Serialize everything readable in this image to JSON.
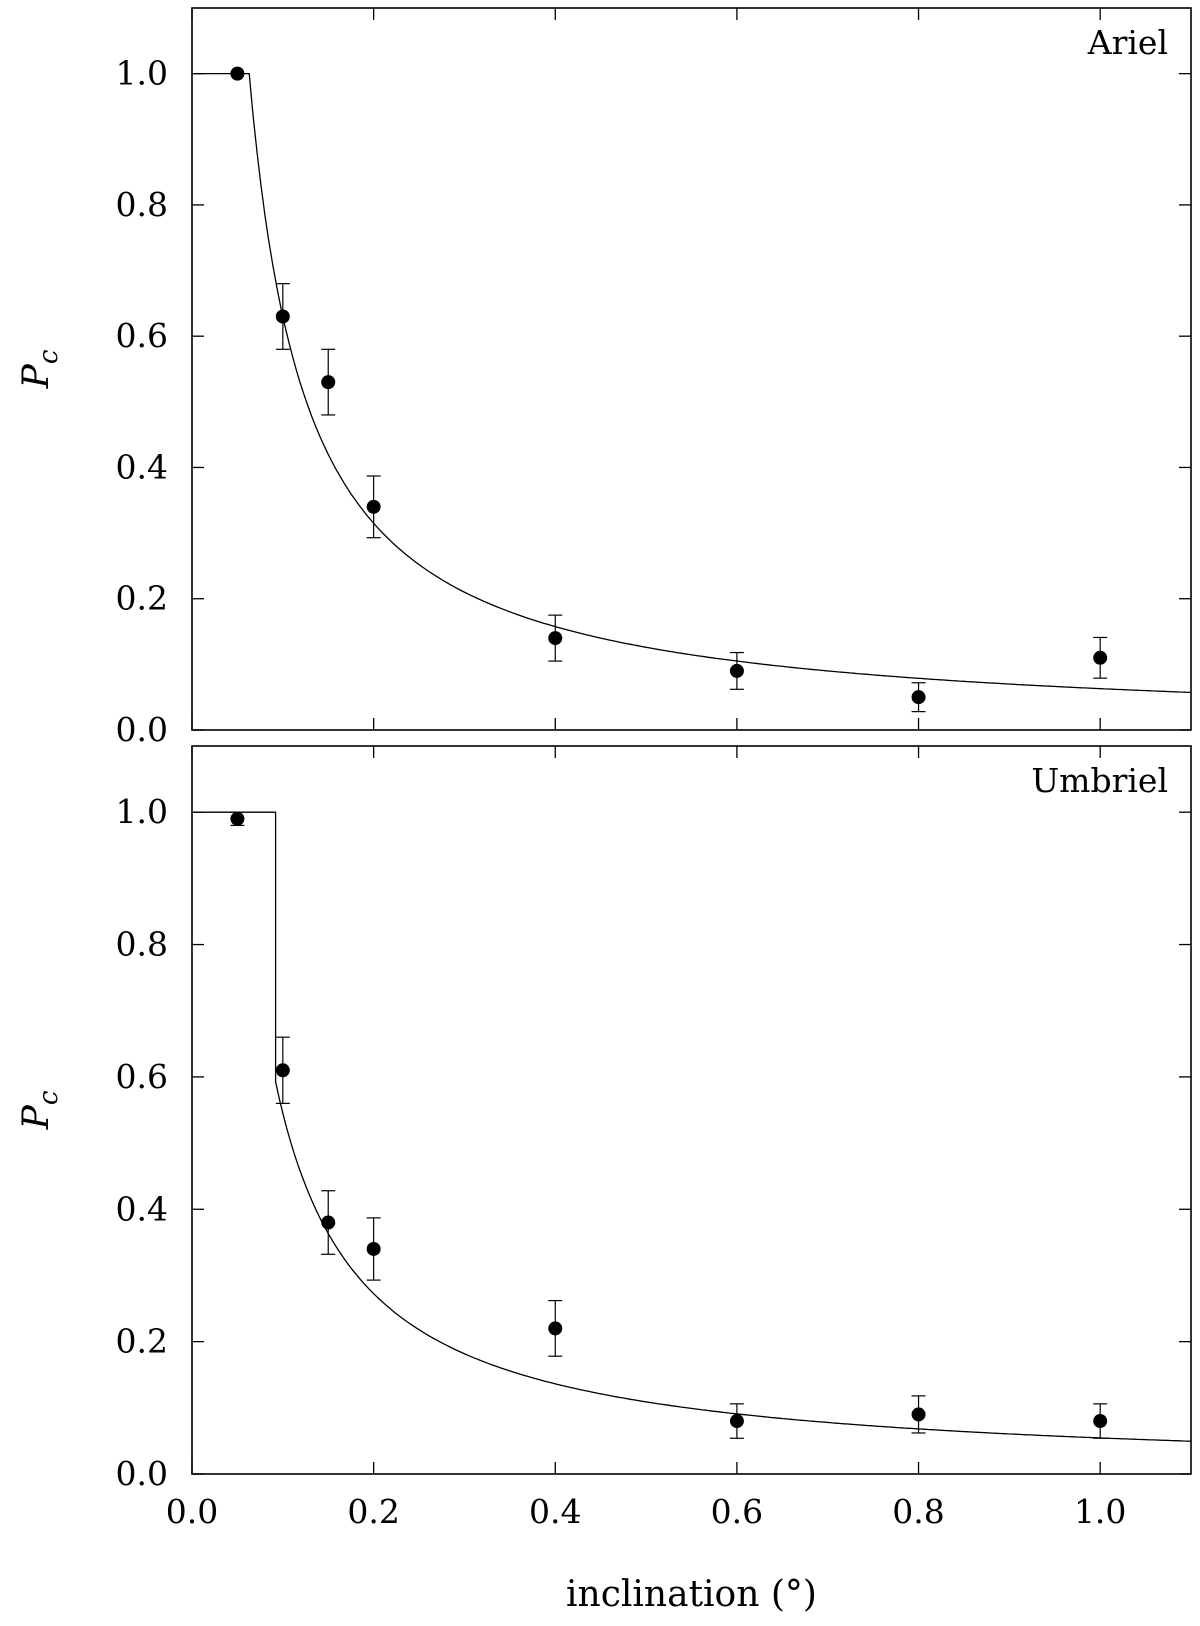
{
  "chart_data": [
    {
      "type": "scatter",
      "panel_label": "Ariel",
      "ylabel_symbol": "P",
      "ylabel_subscript": "c",
      "xlim": [
        0.0,
        1.1
      ],
      "ylim": [
        0.0,
        1.1
      ],
      "x_ticks": [
        "0.0",
        "0.2",
        "0.4",
        "0.6",
        "0.8",
        "1.0"
      ],
      "y_ticks": [
        "0.0",
        "0.2",
        "0.4",
        "0.6",
        "0.8",
        "1.0"
      ],
      "points": [
        {
          "x": 0.05,
          "y": 1.0,
          "err": 0.0
        },
        {
          "x": 0.1,
          "y": 0.63,
          "err": 0.05
        },
        {
          "x": 0.15,
          "y": 0.53,
          "err": 0.05
        },
        {
          "x": 0.2,
          "y": 0.34,
          "err": 0.047
        },
        {
          "x": 0.4,
          "y": 0.14,
          "err": 0.035
        },
        {
          "x": 0.6,
          "y": 0.09,
          "err": 0.028
        },
        {
          "x": 0.8,
          "y": 0.05,
          "err": 0.022
        },
        {
          "x": 1.0,
          "y": 0.11,
          "err": 0.031
        }
      ],
      "fit": {
        "x_cut": 0.063,
        "k": 0.063
      }
    },
    {
      "type": "scatter",
      "panel_label": "Umbriel",
      "ylabel_symbol": "P",
      "ylabel_subscript": "c",
      "xlabel": "inclination (°)",
      "xlim": [
        0.0,
        1.1
      ],
      "ylim": [
        0.0,
        1.1
      ],
      "x_ticks": [
        "0.0",
        "0.2",
        "0.4",
        "0.6",
        "0.8",
        "1.0"
      ],
      "y_ticks": [
        "0.0",
        "0.2",
        "0.4",
        "0.6",
        "0.8",
        "1.0"
      ],
      "points": [
        {
          "x": 0.05,
          "y": 0.99,
          "err": 0.01
        },
        {
          "x": 0.1,
          "y": 0.61,
          "err": 0.05
        },
        {
          "x": 0.15,
          "y": 0.38,
          "err": 0.048
        },
        {
          "x": 0.2,
          "y": 0.34,
          "err": 0.047
        },
        {
          "x": 0.4,
          "y": 0.22,
          "err": 0.042
        },
        {
          "x": 0.6,
          "y": 0.08,
          "err": 0.026
        },
        {
          "x": 0.8,
          "y": 0.09,
          "err": 0.028
        },
        {
          "x": 1.0,
          "y": 0.08,
          "err": 0.026
        }
      ],
      "fit": {
        "x_cut": 0.092,
        "k": 0.00514,
        "p": 1.95,
        "tail": 0.0545
      }
    }
  ]
}
